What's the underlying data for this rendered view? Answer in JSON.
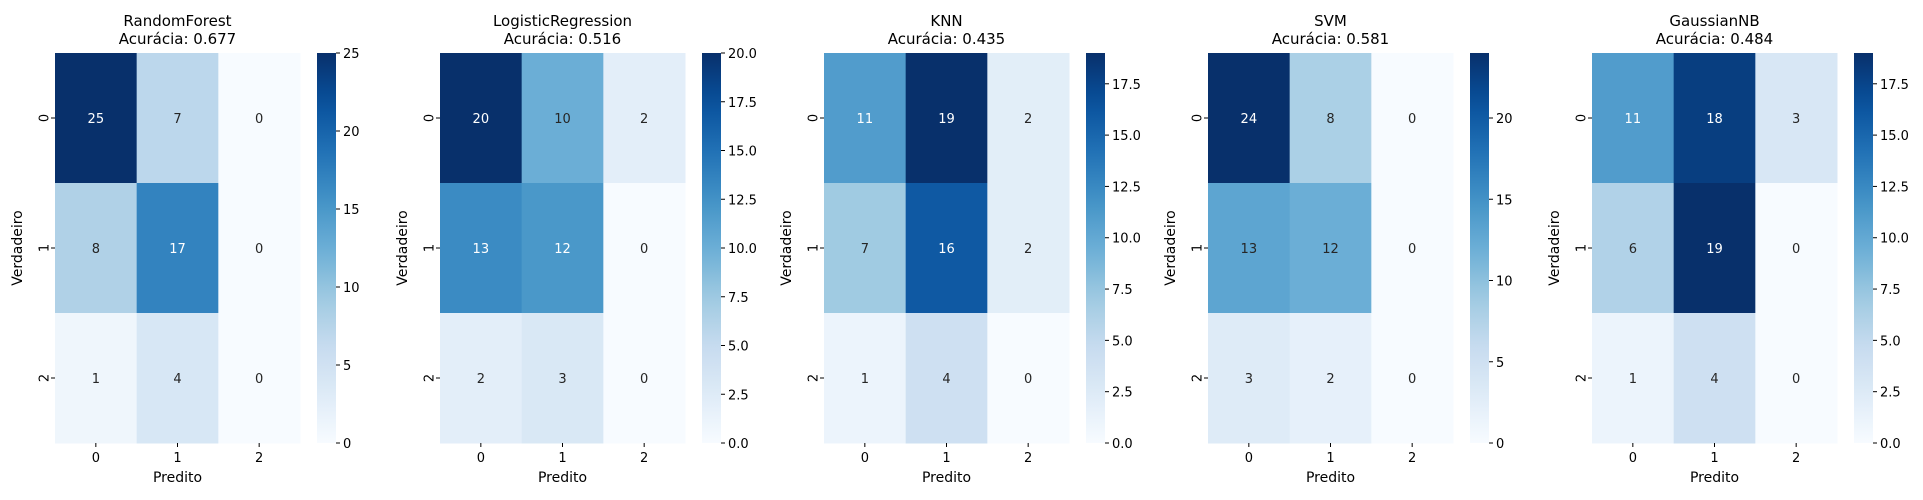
{
  "chart_data": [
    {
      "type": "heatmap",
      "title_model": "RandomForest",
      "title_metric": "Acurácia: 0.677",
      "xlabel": "Predito",
      "ylabel": "Verdadeiro",
      "x_categories": [
        "0",
        "1",
        "2"
      ],
      "y_categories": [
        "0",
        "1",
        "2"
      ],
      "matrix": [
        [
          25,
          7,
          0
        ],
        [
          8,
          17,
          0
        ],
        [
          1,
          4,
          0
        ]
      ],
      "colormap": "Blues",
      "vmin": 0,
      "vmax": 25,
      "colorbar_ticks": [
        "0",
        "5",
        "10",
        "15",
        "20",
        "25"
      ]
    },
    {
      "type": "heatmap",
      "title_model": "LogisticRegression",
      "title_metric": "Acurácia: 0.516",
      "xlabel": "Predito",
      "ylabel": "Verdadeiro",
      "x_categories": [
        "0",
        "1",
        "2"
      ],
      "y_categories": [
        "0",
        "1",
        "2"
      ],
      "matrix": [
        [
          20,
          10,
          2
        ],
        [
          13,
          12,
          0
        ],
        [
          2,
          3,
          0
        ]
      ],
      "colormap": "Blues",
      "vmin": 0,
      "vmax": 20,
      "colorbar_ticks": [
        "0.0",
        "2.5",
        "5.0",
        "7.5",
        "10.0",
        "12.5",
        "15.0",
        "17.5",
        "20.0"
      ]
    },
    {
      "type": "heatmap",
      "title_model": "KNN",
      "title_metric": "Acurácia: 0.435",
      "xlabel": "Predito",
      "ylabel": "Verdadeiro",
      "x_categories": [
        "0",
        "1",
        "2"
      ],
      "y_categories": [
        "0",
        "1",
        "2"
      ],
      "matrix": [
        [
          11,
          19,
          2
        ],
        [
          7,
          16,
          2
        ],
        [
          1,
          4,
          0
        ]
      ],
      "colormap": "Blues",
      "vmin": 0,
      "vmax": 19,
      "colorbar_ticks": [
        "0.0",
        "2.5",
        "5.0",
        "7.5",
        "10.0",
        "12.5",
        "15.0",
        "17.5"
      ]
    },
    {
      "type": "heatmap",
      "title_model": "SVM",
      "title_metric": "Acurácia: 0.581",
      "xlabel": "Predito",
      "ylabel": "Verdadeiro",
      "x_categories": [
        "0",
        "1",
        "2"
      ],
      "y_categories": [
        "0",
        "1",
        "2"
      ],
      "matrix": [
        [
          24,
          8,
          0
        ],
        [
          13,
          12,
          0
        ],
        [
          3,
          2,
          0
        ]
      ],
      "colormap": "Blues",
      "vmin": 0,
      "vmax": 24,
      "colorbar_ticks": [
        "0",
        "5",
        "10",
        "15",
        "20"
      ]
    },
    {
      "type": "heatmap",
      "title_model": "GaussianNB",
      "title_metric": "Acurácia: 0.484",
      "xlabel": "Predito",
      "ylabel": "Verdadeiro",
      "x_categories": [
        "0",
        "1",
        "2"
      ],
      "y_categories": [
        "0",
        "1",
        "2"
      ],
      "matrix": [
        [
          11,
          18,
          3
        ],
        [
          6,
          19,
          0
        ],
        [
          1,
          4,
          0
        ]
      ],
      "colormap": "Blues",
      "vmin": 0,
      "vmax": 19,
      "colorbar_ticks": [
        "0.0",
        "2.5",
        "5.0",
        "7.5",
        "10.0",
        "12.5",
        "15.0",
        "17.5"
      ]
    }
  ]
}
